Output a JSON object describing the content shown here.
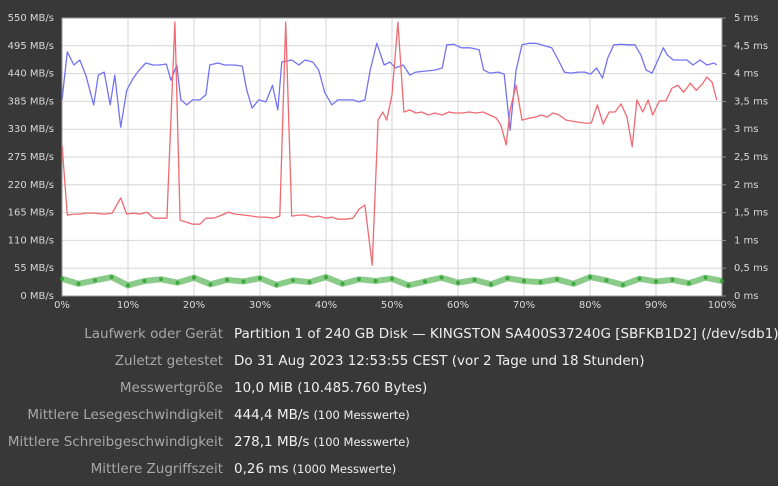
{
  "chart_data": {
    "type": "line",
    "xlim": [
      0,
      100
    ],
    "xticks": [
      {
        "value": 0,
        "label": "0%"
      },
      {
        "value": 10,
        "label": "10%"
      },
      {
        "value": 20,
        "label": "20%"
      },
      {
        "value": 30,
        "label": "30%"
      },
      {
        "value": 40,
        "label": "40%"
      },
      {
        "value": 50,
        "label": "50%"
      },
      {
        "value": 60,
        "label": "60%"
      },
      {
        "value": 70,
        "label": "70%"
      },
      {
        "value": 80,
        "label": "80%"
      },
      {
        "value": 90,
        "label": "90%"
      },
      {
        "value": 100,
        "label": "100%"
      }
    ],
    "ylim": [
      0,
      550
    ],
    "yticks": [
      {
        "value": 0,
        "label": "0 MB/s"
      },
      {
        "value": 55,
        "label": "55 MB/s"
      },
      {
        "value": 110,
        "label": "110 MB/s"
      },
      {
        "value": 165,
        "label": "165 MB/s"
      },
      {
        "value": 220,
        "label": "220 MB/s"
      },
      {
        "value": 275,
        "label": "275 MB/s"
      },
      {
        "value": 330,
        "label": "330 MB/s"
      },
      {
        "value": 385,
        "label": "385 MB/s"
      },
      {
        "value": 440,
        "label": "440 MB/s"
      },
      {
        "value": 495,
        "label": "495 MB/s"
      },
      {
        "value": 550,
        "label": "550 MB/s"
      }
    ],
    "y2lim": [
      0,
      5
    ],
    "y2ticks": [
      {
        "value": 0,
        "label": "0 ms"
      },
      {
        "value": 0.5,
        "label": "0,5 ms"
      },
      {
        "value": 1,
        "label": "1 ms"
      },
      {
        "value": 1.5,
        "label": "1,5 ms"
      },
      {
        "value": 2,
        "label": "2 ms"
      },
      {
        "value": 2.5,
        "label": "2,5 ms"
      },
      {
        "value": 3,
        "label": "3 ms"
      },
      {
        "value": 3.5,
        "label": "3,5 ms"
      },
      {
        "value": 4,
        "label": "4 ms"
      },
      {
        "value": 4.5,
        "label": "4,5 ms"
      },
      {
        "value": 5,
        "label": "5 ms"
      }
    ],
    "grid": true,
    "series": [
      {
        "color": "#7373f0",
        "x": [
          0,
          0.8,
          1.8,
          2.7,
          3.6,
          4.8,
          5.5,
          6.4,
          7.3,
          8,
          8.9,
          9.8,
          10.8,
          11.7,
          12.7,
          13.8,
          14.8,
          15.8,
          16.5,
          17.4,
          18,
          18.9,
          19.8,
          20.9,
          21.8,
          22.4,
          23.6,
          24.7,
          26,
          27.3,
          28,
          28.8,
          29.8,
          30.9,
          31.9,
          32.7,
          33.3,
          34.8,
          35.9,
          36.8,
          38,
          38.9,
          39.8,
          40.9,
          41.8,
          42.9,
          44.1,
          45,
          45.9,
          46.7,
          47.7,
          48.8,
          49.7,
          50.5,
          51.7,
          52.7,
          53.6,
          55,
          56.5,
          57.6,
          58.3,
          59.4,
          60.5,
          61.8,
          63.2,
          63.9,
          64.8,
          66.1,
          67,
          67.9,
          68.8,
          69.7,
          70.8,
          71.8,
          74.2,
          75.2,
          76.1,
          77.1,
          78.2,
          79.2,
          80.1,
          81,
          81.9,
          82.7,
          83.6,
          84.7,
          85.8,
          86.8,
          87.7,
          88.5,
          89.4,
          90.3,
          91.1,
          91.7,
          92.6,
          93.6,
          94.7,
          95.6,
          96.7,
          97.7,
          98.8,
          99.2
        ],
        "values": [
          388,
          483,
          457,
          467,
          437,
          378,
          437,
          443,
          378,
          437,
          334,
          407,
          431,
          447,
          461,
          457,
          457,
          459,
          427,
          457,
          388,
          378,
          388,
          388,
          398,
          457,
          461,
          457,
          457,
          455,
          407,
          372,
          388,
          384,
          417,
          368,
          463,
          467,
          457,
          467,
          463,
          447,
          403,
          378,
          388,
          388,
          388,
          384,
          388,
          447,
          500,
          457,
          463,
          451,
          457,
          437,
          443,
          445,
          447,
          451,
          497,
          498,
          491,
          491,
          487,
          447,
          441,
          443,
          439,
          328,
          447,
          497,
          500,
          500,
          491,
          467,
          443,
          441,
          443,
          443,
          439,
          451,
          431,
          471,
          497,
          498,
          497,
          497,
          477,
          447,
          441,
          467,
          491,
          477,
          467,
          467,
          467,
          457,
          467,
          457,
          461,
          457
        ]
      },
      {
        "color": "#f06a72",
        "x": [
          0,
          0.8,
          1.8,
          2.7,
          3.6,
          4.8,
          6.4,
          7.6,
          8.9,
          9.8,
          10.9,
          11.8,
          12.9,
          13.9,
          15.9,
          17.1,
          17.9,
          18.9,
          19.8,
          20.9,
          21.8,
          23,
          24.2,
          25.2,
          26.2,
          27.7,
          28.8,
          29.8,
          30.9,
          32,
          33,
          33.9,
          34.8,
          35.9,
          36.8,
          38,
          38.9,
          40,
          40.9,
          41.8,
          42.9,
          44.1,
          45,
          45.9,
          47,
          47.9,
          48.6,
          49.2,
          50,
          50.9,
          51.8,
          52.7,
          53.6,
          54.5,
          55.5,
          56.5,
          57.6,
          58.6,
          59.5,
          60.6,
          61.7,
          62.7,
          63.8,
          64.8,
          65.8,
          66.5,
          67.3,
          67.9,
          68.8,
          69.7,
          70.8,
          71.7,
          72.6,
          73.5,
          74.4,
          75.3,
          76.4,
          77.3,
          78.2,
          79.2,
          80.2,
          81.1,
          82,
          82.9,
          83.8,
          84.7,
          85.6,
          86.4,
          87.1,
          88,
          88.8,
          89.5,
          90.5,
          91.5,
          92.4,
          93.3,
          94.2,
          95.2,
          96.1,
          97,
          97.7,
          98.5,
          99.2
        ],
        "values": [
          299,
          160,
          162,
          162,
          164,
          164,
          162,
          164,
          194,
          162,
          164,
          162,
          166,
          154,
          154,
          542,
          150,
          146,
          142,
          142,
          154,
          154,
          160,
          166,
          162,
          160,
          158,
          156,
          156,
          154,
          158,
          542,
          158,
          160,
          160,
          156,
          158,
          154,
          156,
          152,
          152,
          154,
          172,
          180,
          61,
          348,
          364,
          348,
          398,
          542,
          364,
          368,
          362,
          364,
          358,
          362,
          358,
          364,
          362,
          362,
          364,
          362,
          364,
          358,
          352,
          338,
          299,
          368,
          417,
          348,
          352,
          354,
          358,
          354,
          362,
          358,
          348,
          346,
          344,
          342,
          342,
          378,
          340,
          364,
          364,
          380,
          354,
          295,
          388,
          364,
          388,
          358,
          386,
          386,
          411,
          417,
          403,
          421,
          407,
          419,
          433,
          423,
          388
        ]
      },
      {
        "color": "#2aa02a",
        "axis": "y2",
        "marker": "dots",
        "x": [
          0,
          2.5,
          5,
          7.5,
          10,
          12.5,
          15,
          17.5,
          20,
          22.5,
          25,
          27.5,
          30,
          32.5,
          35,
          37.5,
          40,
          42.5,
          45,
          47.5,
          50,
          52.5,
          55,
          57.5,
          60,
          62.5,
          65,
          67.5,
          70,
          72.5,
          75,
          77.5,
          80,
          82.5,
          85,
          87.5,
          90,
          92.5,
          95,
          97.5,
          100
        ],
        "values": [
          0.31,
          0.22,
          0.28,
          0.34,
          0.19,
          0.27,
          0.3,
          0.24,
          0.33,
          0.21,
          0.29,
          0.26,
          0.32,
          0.2,
          0.28,
          0.25,
          0.34,
          0.22,
          0.3,
          0.27,
          0.31,
          0.19,
          0.26,
          0.33,
          0.24,
          0.29,
          0.21,
          0.32,
          0.27,
          0.25,
          0.3,
          0.22,
          0.34,
          0.28,
          0.2,
          0.31,
          0.26,
          0.29,
          0.23,
          0.33,
          0.27
        ]
      }
    ]
  },
  "table": {
    "rows": [
      {
        "label": "Laufwerk oder Gerät",
        "value": "Partition 1 of 240 GB Disk — KINGSTON SA400S37240G [SBFKB1D2] (/dev/sdb1)"
      },
      {
        "label": "Zuletzt getestet",
        "value": "Do 31 Aug 2023 12:53:55 CEST (vor 2 Tage und 18 Stunden)"
      },
      {
        "label": "Messwertgröße",
        "value": "10,0 MiB (10.485.760 Bytes)"
      },
      {
        "label": "Mittlere Lesegeschwindigkeit",
        "value": "444,4 MB/s",
        "note": "(100 Messwerte)"
      },
      {
        "label": "Mittlere Schreibgeschwindigkeit",
        "value": "278,1 MB/s",
        "note": "(100 Messwerte)"
      },
      {
        "label": "Mittlere Zugriffszeit",
        "value": "0,26 ms",
        "note": "(1000 Messwerte)"
      }
    ]
  }
}
